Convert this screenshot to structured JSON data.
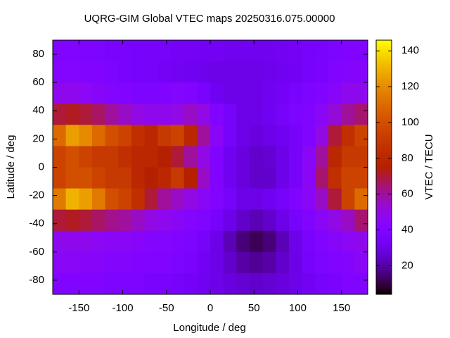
{
  "chart_data": {
    "type": "heatmap",
    "title": "UQRG-GIM Global VTEC maps 20250316.075.00000",
    "xlabel": "Longitude / deg",
    "ylabel": "Latitude / deg",
    "colorbar_label": "VTEC / TECU",
    "colormap": "gnuplot",
    "x": [
      -172.5,
      -157.5,
      -142.5,
      -127.5,
      -112.5,
      -97.5,
      -82.5,
      -67.5,
      -52.5,
      -37.5,
      -22.5,
      -7.5,
      7.5,
      22.5,
      37.5,
      52.5,
      67.5,
      82.5,
      97.5,
      112.5,
      127.5,
      142.5,
      157.5,
      172.5
    ],
    "y": [
      82.5,
      67.5,
      52.5,
      37.5,
      22.5,
      7.5,
      -7.5,
      -22.5,
      -37.5,
      -52.5,
      -67.5,
      -82.5
    ],
    "z": [
      [
        40,
        40,
        38,
        38,
        36,
        36,
        35,
        35,
        35,
        34,
        34,
        33,
        33,
        32,
        32,
        32,
        32,
        33,
        34,
        35,
        36,
        38,
        40,
        40
      ],
      [
        42,
        42,
        40,
        40,
        38,
        36,
        35,
        35,
        34,
        33,
        32,
        31,
        30,
        30,
        30,
        30,
        31,
        32,
        33,
        35,
        37,
        40,
        42,
        42
      ],
      [
        48,
        48,
        46,
        44,
        42,
        40,
        38,
        38,
        40,
        42,
        40,
        36,
        32,
        30,
        30,
        30,
        32,
        34,
        36,
        38,
        40,
        44,
        48,
        48
      ],
      [
        70,
        72,
        70,
        66,
        60,
        55,
        50,
        48,
        48,
        50,
        55,
        50,
        40,
        35,
        30,
        30,
        32,
        35,
        38,
        40,
        45,
        52,
        60,
        65
      ],
      [
        110,
        125,
        120,
        110,
        100,
        95,
        85,
        80,
        90,
        95,
        80,
        60,
        45,
        35,
        30,
        28,
        30,
        32,
        35,
        40,
        50,
        70,
        85,
        95
      ],
      [
        95,
        100,
        95,
        90,
        90,
        85,
        80,
        80,
        75,
        70,
        60,
        50,
        40,
        32,
        28,
        25,
        26,
        30,
        35,
        45,
        60,
        80,
        90,
        90
      ],
      [
        95,
        100,
        100,
        95,
        90,
        90,
        80,
        75,
        80,
        90,
        75,
        55,
        40,
        32,
        28,
        25,
        25,
        30,
        35,
        45,
        65,
        85,
        95,
        95
      ],
      [
        115,
        130,
        125,
        115,
        100,
        95,
        85,
        70,
        60,
        55,
        50,
        45,
        40,
        35,
        30,
        30,
        32,
        35,
        40,
        45,
        55,
        70,
        95,
        110
      ],
      [
        70,
        72,
        70,
        66,
        62,
        60,
        55,
        50,
        48,
        45,
        42,
        40,
        35,
        30,
        25,
        22,
        25,
        30,
        35,
        40,
        45,
        50,
        55,
        65
      ],
      [
        48,
        48,
        48,
        46,
        45,
        45,
        44,
        42,
        42,
        40,
        38,
        35,
        30,
        22,
        15,
        12,
        15,
        22,
        30,
        36,
        40,
        44,
        46,
        48
      ],
      [
        45,
        45,
        44,
        44,
        42,
        42,
        40,
        40,
        40,
        38,
        36,
        33,
        30,
        25,
        20,
        18,
        20,
        25,
        30,
        35,
        38,
        40,
        42,
        45
      ],
      [
        40,
        40,
        40,
        40,
        38,
        38,
        38,
        36,
        36,
        35,
        34,
        32,
        30,
        28,
        26,
        25,
        26,
        28,
        30,
        33,
        35,
        37,
        40,
        40
      ]
    ],
    "xlim": [
      -180,
      180
    ],
    "ylim": [
      -90,
      90
    ],
    "xticks": [
      -150,
      -100,
      -50,
      0,
      50,
      100,
      150
    ],
    "yticks": [
      -80,
      -60,
      -40,
      -20,
      0,
      20,
      40,
      60,
      80
    ],
    "clim": [
      4,
      146
    ],
    "cticks": [
      20,
      40,
      60,
      80,
      100,
      120,
      140
    ]
  }
}
